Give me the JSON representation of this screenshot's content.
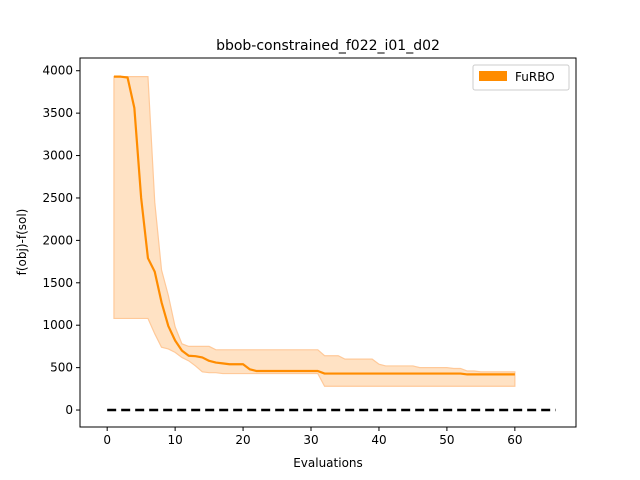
{
  "chart_data": {
    "type": "line",
    "title": "bbob-constrained_f022_i01_d02",
    "xlabel": "Evaluations",
    "ylabel": "f(obj)-f(sol)",
    "xlim": [
      -4,
      69
    ],
    "ylim": [
      -200,
      4150
    ],
    "xticks": [
      0,
      10,
      20,
      30,
      40,
      50,
      60
    ],
    "yticks": [
      0,
      500,
      1000,
      1500,
      2000,
      2500,
      3000,
      3500,
      4000
    ],
    "grid": false,
    "legend_position": "top-right",
    "colors": {
      "line": "#ff8c00",
      "band": "#ffe2c4",
      "band_edge": "#ffc999",
      "reference": "#000000"
    },
    "series": [
      {
        "name": "FuRBO",
        "x": [
          1,
          2,
          3,
          4,
          5,
          6,
          7,
          8,
          9,
          10,
          11,
          12,
          13,
          14,
          15,
          16,
          17,
          18,
          19,
          20,
          21,
          22,
          23,
          24,
          25,
          26,
          27,
          28,
          29,
          30,
          31,
          32,
          33,
          34,
          35,
          36,
          37,
          38,
          39,
          40,
          41,
          42,
          43,
          44,
          45,
          46,
          47,
          48,
          49,
          50,
          51,
          52,
          53,
          54,
          55,
          56,
          57,
          58,
          59,
          60
        ],
        "median": [
          3930,
          3930,
          3920,
          3560,
          2500,
          1790,
          1630,
          1270,
          990,
          820,
          700,
          640,
          635,
          620,
          580,
          560,
          550,
          540,
          540,
          540,
          480,
          460,
          460,
          460,
          460,
          460,
          460,
          460,
          460,
          460,
          460,
          430,
          430,
          430,
          430,
          430,
          430,
          430,
          430,
          430,
          430,
          430,
          430,
          430,
          430,
          430,
          430,
          430,
          430,
          430,
          430,
          430,
          420,
          420,
          420,
          420,
          420,
          420,
          420,
          420
        ],
        "upper": [
          3930,
          3930,
          3930,
          3930,
          3930,
          3930,
          2450,
          1650,
          1350,
          980,
          780,
          750,
          750,
          750,
          750,
          710,
          710,
          710,
          710,
          710,
          710,
          710,
          710,
          710,
          710,
          710,
          710,
          710,
          710,
          710,
          710,
          640,
          640,
          640,
          600,
          600,
          600,
          600,
          600,
          540,
          520,
          520,
          520,
          520,
          520,
          500,
          500,
          500,
          500,
          500,
          490,
          490,
          460,
          460,
          450,
          450,
          450,
          450,
          450,
          450
        ],
        "lower": [
          1080,
          1080,
          1080,
          1080,
          1080,
          1080,
          900,
          740,
          720,
          680,
          620,
          580,
          520,
          450,
          440,
          440,
          430,
          430,
          430,
          430,
          430,
          430,
          430,
          430,
          430,
          430,
          430,
          430,
          430,
          430,
          430,
          280,
          280,
          280,
          280,
          280,
          280,
          280,
          280,
          280,
          280,
          280,
          280,
          280,
          280,
          280,
          280,
          280,
          280,
          280,
          280,
          280,
          280,
          280,
          280,
          280,
          280,
          280,
          280,
          280
        ]
      }
    ],
    "reference_line": {
      "y": 0,
      "x_start": 0,
      "x_end": 66
    }
  }
}
